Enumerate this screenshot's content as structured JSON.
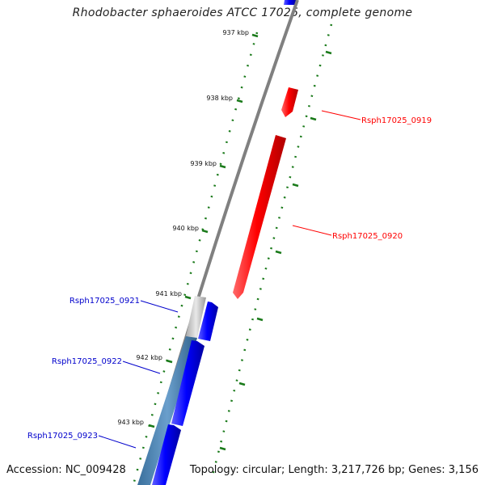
{
  "title": "Rhodobacter sphaeroides ATCC 17025, complete genome",
  "accession_label": "Accession: NC_009428",
  "summary_label": "Topology: circular; Length: 3,217,726 bp; Genes: 3,156",
  "ruler_ticks": [
    "937 kbp",
    "938 kbp",
    "939 kbp",
    "940 kbp",
    "941 kbp",
    "942 kbp",
    "943 kbp"
  ],
  "genes": [
    {
      "name": "Rsph17025_0919",
      "strand": "forward",
      "color": "#ff0000"
    },
    {
      "name": "Rsph17025_0920",
      "strand": "forward",
      "color": "#ff0000"
    },
    {
      "name": "Rsph17025_0921",
      "strand": "reverse",
      "color": "#0000ff"
    },
    {
      "name": "Rsph17025_0922",
      "strand": "reverse",
      "color": "#0000ff"
    },
    {
      "name": "Rsph17025_0923",
      "strand": "reverse",
      "color": "#0000ff"
    }
  ],
  "colors": {
    "forward_gene": "#ff0000",
    "reverse_gene": "#0000ff",
    "backbone": "#808080",
    "tick": "#1a7a1a",
    "feature_bar": "#4682b4"
  }
}
